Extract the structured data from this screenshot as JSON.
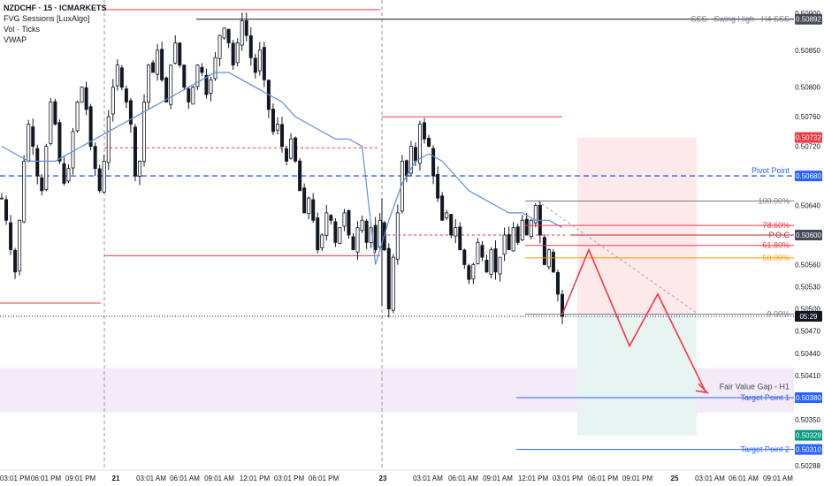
{
  "header": {
    "title": "NZDCHF · 15 · ICMARKETS",
    "indicators": [
      "FVG Sessions [LuxAlgo]",
      "Vol · Ticks",
      "VWAP"
    ]
  },
  "chart_data": {
    "type": "candlestick",
    "symbol": "NZDCHF",
    "timeframe": "15",
    "exchange": "ICMARKETS",
    "ylim": [
      0.50282,
      0.50918
    ],
    "y_ticks": [
      "0.50900",
      "0.50850",
      "0.50800",
      "0.50760",
      "0.50720",
      "0.50680",
      "0.50640",
      "0.50600",
      "0.50560",
      "0.50530",
      "0.50500",
      "0.50470",
      "0.50440",
      "0.50410",
      "0.50380",
      "0.50350",
      "0.50310",
      "0.50288"
    ],
    "x_ticks": [
      "03:01 PM",
      "06:01 PM",
      "09:01 PM",
      "21",
      "03:01 AM",
      "06:01 AM",
      "09:01 AM",
      "12:01 PM",
      "03:01 PM",
      "06:01 PM",
      "23",
      "03:01 AM",
      "06:01 AM",
      "09:01 AM",
      "12:01 PM",
      "03:01 PM",
      "06:01 PM",
      "09:01 PM",
      "25",
      "03:01 AM",
      "06:01 AM",
      "09:01 AM"
    ],
    "bold_x_ticks": [
      "21",
      "23",
      "25"
    ],
    "close_path": [
      0.5065,
      0.5062,
      0.5058,
      0.5055,
      0.5062,
      0.507,
      0.5075,
      0.5072,
      0.5068,
      0.5066,
      0.5072,
      0.5078,
      0.5075,
      0.507,
      0.5067,
      0.5069,
      0.5074,
      0.5078,
      0.508,
      0.5077,
      0.5072,
      0.5069,
      0.5066,
      0.507,
      0.5076,
      0.508,
      0.5083,
      0.508,
      0.5078,
      0.5075,
      0.5068,
      0.507,
      0.5078,
      0.5083,
      0.5082,
      0.5085,
      0.5081,
      0.5078,
      0.5083,
      0.5086,
      0.5083,
      0.508,
      0.5078,
      0.508,
      0.5083,
      0.5082,
      0.5079,
      0.5081,
      0.5084,
      0.5087,
      0.5088,
      0.5086,
      0.5083,
      0.5086,
      0.5089,
      0.5087,
      0.5084,
      0.5082,
      0.5085,
      0.5081,
      0.5077,
      0.5074,
      0.5075,
      0.5072,
      0.507,
      0.5073,
      0.507,
      0.5066,
      0.5063,
      0.5065,
      0.5062,
      0.5058,
      0.506,
      0.5063,
      0.5062,
      0.5059,
      0.5061,
      0.5063,
      0.506,
      0.5058,
      0.5061,
      0.5062,
      0.5059,
      0.5061,
      0.5058,
      0.5062,
      0.5058,
      0.505,
      0.5057,
      0.5063,
      0.507,
      0.5068,
      0.5072,
      0.507,
      0.5075,
      0.5073,
      0.5072,
      0.5068,
      0.5065,
      0.5062,
      0.5063,
      0.506,
      0.5061,
      0.5058,
      0.5056,
      0.5054,
      0.5056,
      0.5059,
      0.5057,
      0.5055,
      0.5058,
      0.5055,
      0.5057,
      0.506,
      0.5058,
      0.5061,
      0.5059,
      0.5062,
      0.506,
      0.5062,
      0.5064,
      0.506,
      0.5056,
      0.5058,
      0.5055,
      0.5052,
      0.5049
    ],
    "vwap_path": [
      0.5072,
      0.5071,
      0.507,
      0.507,
      0.507,
      0.5071,
      0.5072,
      0.5073,
      0.5074,
      0.5075,
      0.5076,
      0.5077,
      0.5078,
      0.5079,
      0.508,
      0.5081,
      0.5082,
      0.5082,
      0.5081,
      0.508,
      0.5079,
      0.5078,
      0.5076,
      0.5075,
      0.5074,
      0.5073,
      0.5073,
      0.5072,
      0.5056,
      0.5062,
      0.5067,
      0.507,
      0.5071,
      0.507,
      0.5068,
      0.5066,
      0.5065,
      0.5064,
      0.5063,
      0.5063,
      0.5062,
      0.5062,
      0.5061
    ],
    "levels": [
      {
        "label": "SSS - Swing High - H4 SSS",
        "price": "0.50892",
        "value": 0.50892
      },
      {
        "label": "Pivot Point",
        "price": "0.50680",
        "value": 0.5068
      },
      {
        "label": "P.O.C",
        "price": "0.50600",
        "value": 0.506
      },
      {
        "label": "Fair Value Gap - H1",
        "value": 0.50395
      },
      {
        "label": "Target Point 1",
        "price": "0.50380",
        "value": 0.5038
      },
      {
        "label": "Target Point 2",
        "price": "0.50310",
        "value": 0.5031
      }
    ],
    "fib_levels": [
      {
        "label": "100.00%",
        "value": 0.50646
      },
      {
        "label": "78.60%",
        "value": 0.50613
      },
      {
        "label": "61.80%",
        "value": 0.50586
      },
      {
        "label": "50.00%",
        "value": 0.50569
      },
      {
        "label": "0.00%",
        "value": 0.50493
      }
    ],
    "price_tags": {
      "stop": "0.50732",
      "current": "05:29",
      "entry_tag": "0.50329"
    },
    "projection_path": [
      0.50493,
      0.5058,
      0.5045,
      0.5052,
      0.50388
    ],
    "colors": {
      "up": "#131722",
      "down": "#131722",
      "vwap": "#5b8fd9",
      "resistance": "#f23645",
      "pivot": "#2962ff",
      "fib_50": "#ff9800",
      "target": "#2962ff",
      "fvg_zone": "#f3ecf8",
      "stop_zone": "#fde9e9",
      "profit_zone": "#e7f4f1",
      "projection": "#f23645"
    }
  }
}
